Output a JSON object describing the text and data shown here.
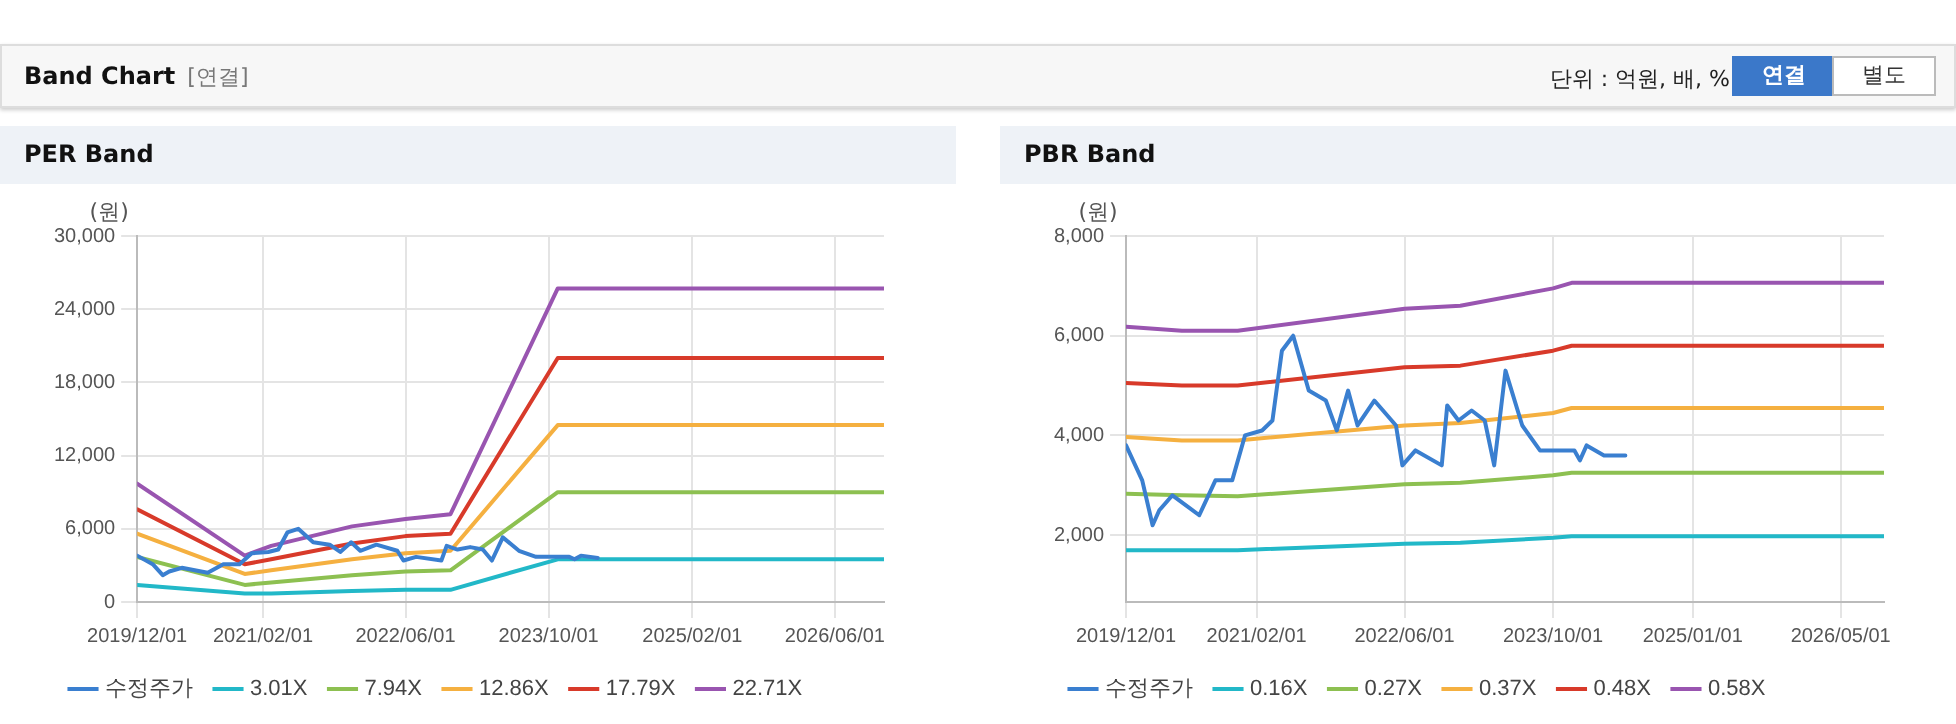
{
  "chart_data": [
    {
      "type": "line",
      "title": "PER Band",
      "ylabel": "(원)",
      "annotations": [
        "Band Chart",
        "[연결]",
        "단위 : 억원, 배, %",
        "연결",
        "별도"
      ],
      "xlim": [
        "2019-12-01",
        "2026-11-15"
      ],
      "xticks": [
        {
          "value": "2019-12-01",
          "label": "2019/12/01"
        },
        {
          "value": "2021-02-01",
          "label": "2021/02/01"
        },
        {
          "value": "2022-06-01",
          "label": "2022/06/01"
        },
        {
          "value": "2023-10-01",
          "label": "2023/10/01"
        },
        {
          "value": "2025-02-01",
          "label": "2025/02/01"
        },
        {
          "value": "2026-06-01",
          "label": "2026/06/01"
        }
      ],
      "ylim": [
        0,
        30000
      ],
      "yticks": [
        {
          "value": 0,
          "label": "0"
        },
        {
          "value": 6000,
          "label": "6,000"
        },
        {
          "value": 12000,
          "label": "12,000"
        },
        {
          "value": 18000,
          "label": "18,000"
        },
        {
          "value": 24000,
          "label": "24,000"
        },
        {
          "value": 30000,
          "label": "30,000"
        }
      ],
      "grid": true,
      "legend": "bottom",
      "marker": "none",
      "line_style": "solid",
      "series": [
        {
          "name": "수정주가",
          "color": "#3a7fd0",
          "x": [
            "2019-12-01",
            "2020-01-23",
            "2020-02-26",
            "2020-03-19",
            "2020-05-01",
            "2020-07-28",
            "2020-09-19",
            "2020-11-13",
            "2020-12-25",
            "2021-02-19",
            "2021-03-25",
            "2021-04-25",
            "2021-06-01",
            "2021-07-22",
            "2021-09-16",
            "2021-10-22",
            "2021-11-28",
            "2021-12-29",
            "2022-02-22",
            "2022-05-04",
            "2022-05-25",
            "2022-07-07",
            "2022-10-01",
            "2022-10-19",
            "2022-11-25",
            "2023-01-07",
            "2023-02-19",
            "2023-03-22",
            "2023-04-28",
            "2023-06-22",
            "2023-08-19",
            "2023-12-10",
            "2023-12-28",
            "2024-01-19",
            "2024-03-16"
          ],
          "values": [
            3800,
            3100,
            2200,
            2500,
            2800,
            2400,
            3100,
            3100,
            4000,
            4100,
            4300,
            5700,
            6000,
            4900,
            4700,
            4100,
            4900,
            4200,
            4700,
            4200,
            3400,
            3700,
            3400,
            4600,
            4300,
            4500,
            4300,
            3400,
            5300,
            4200,
            3700,
            3700,
            3500,
            3800,
            3600
          ]
        },
        {
          "name": "3.01X",
          "color": "#22b8c8",
          "x": [
            "2019-12-01",
            "2020-12-01",
            "2021-03-01",
            "2021-12-01",
            "2022-06-01",
            "2022-11-01",
            "2023-11-01",
            "2026-11-15"
          ],
          "values": [
            1400,
            700,
            700,
            900,
            1000,
            1000,
            3500,
            3500
          ]
        },
        {
          "name": "7.94X",
          "color": "#8dc051",
          "x": [
            "2019-12-01",
            "2020-12-01",
            "2021-03-01",
            "2021-12-01",
            "2022-06-01",
            "2022-11-01",
            "2023-11-01",
            "2026-11-15"
          ],
          "values": [
            3700,
            1400,
            1600,
            2200,
            2500,
            2600,
            9000,
            9000
          ]
        },
        {
          "name": "12.86X",
          "color": "#f5b040",
          "x": [
            "2019-12-01",
            "2020-12-01",
            "2021-03-01",
            "2021-12-01",
            "2022-06-01",
            "2022-11-01",
            "2023-11-01",
            "2026-11-15"
          ],
          "values": [
            5600,
            2300,
            2600,
            3500,
            4000,
            4200,
            14500,
            14500
          ]
        },
        {
          "name": "17.79X",
          "color": "#d83a2a",
          "x": [
            "2019-12-01",
            "2020-12-01",
            "2021-03-01",
            "2021-12-01",
            "2022-06-01",
            "2022-11-01",
            "2023-11-01",
            "2026-11-15"
          ],
          "values": [
            7600,
            3100,
            3500,
            4800,
            5400,
            5600,
            20000,
            20000
          ]
        },
        {
          "name": "22.71X",
          "color": "#9955b0",
          "x": [
            "2019-12-01",
            "2020-12-01",
            "2021-03-01",
            "2021-12-01",
            "2022-06-01",
            "2022-11-01",
            "2023-11-01",
            "2026-11-15"
          ],
          "values": [
            9700,
            3800,
            4600,
            6200,
            6800,
            7200,
            25700,
            25700
          ]
        }
      ]
    },
    {
      "type": "line",
      "title": "PBR Band",
      "ylabel": "(원)",
      "xlim": [
        "2019-12-01",
        "2026-09-20"
      ],
      "xticks": [
        {
          "value": "2019-12-01",
          "label": "2019/12/01"
        },
        {
          "value": "2021-02-01",
          "label": "2021/02/01"
        },
        {
          "value": "2022-06-01",
          "label": "2022/06/01"
        },
        {
          "value": "2023-10-01",
          "label": "2023/10/01"
        },
        {
          "value": "2025-01-01",
          "label": "2025/01/01"
        },
        {
          "value": "2026-05-01",
          "label": "2026/05/01"
        }
      ],
      "ylim": [
        660,
        8000
      ],
      "yticks": [
        {
          "value": 2000,
          "label": "2,000"
        },
        {
          "value": 4000,
          "label": "4,000"
        },
        {
          "value": 6000,
          "label": "6,000"
        },
        {
          "value": 8000,
          "label": "8,000"
        }
      ],
      "grid": true,
      "legend": "bottom",
      "marker": "none",
      "line_style": "solid",
      "series": [
        {
          "name": "수정주가",
          "color": "#3a7fd0",
          "x": [
            "2019-12-01",
            "2020-01-23",
            "2020-02-26",
            "2020-03-19",
            "2020-05-01",
            "2020-07-28",
            "2020-09-19",
            "2020-11-13",
            "2020-12-25",
            "2021-02-19",
            "2021-03-25",
            "2021-04-25",
            "2021-06-01",
            "2021-07-22",
            "2021-09-16",
            "2021-10-22",
            "2021-11-28",
            "2021-12-29",
            "2022-02-22",
            "2022-05-04",
            "2022-05-25",
            "2022-07-07",
            "2022-10-01",
            "2022-10-19",
            "2022-11-25",
            "2023-01-07",
            "2023-02-19",
            "2023-03-22",
            "2023-04-28",
            "2023-06-22",
            "2023-08-19",
            "2023-12-10",
            "2023-12-28",
            "2024-01-19",
            "2024-03-16",
            "2024-05-25"
          ],
          "values": [
            3800,
            3100,
            2200,
            2500,
            2800,
            2400,
            3100,
            3100,
            4000,
            4100,
            4300,
            5700,
            6000,
            4900,
            4700,
            4100,
            4900,
            4200,
            4700,
            4200,
            3400,
            3700,
            3400,
            4600,
            4300,
            4500,
            4300,
            3400,
            5300,
            4200,
            3700,
            3700,
            3500,
            3800,
            3600,
            3600
          ]
        },
        {
          "name": "0.16X",
          "color": "#22b8c8",
          "x": [
            "2019-12-01",
            "2020-06-01",
            "2020-12-01",
            "2022-06-01",
            "2022-12-01",
            "2023-10-01",
            "2023-12-01",
            "2026-09-20"
          ],
          "values": [
            1700,
            1700,
            1700,
            1830,
            1850,
            1950,
            1980,
            1980
          ]
        },
        {
          "name": "0.27X",
          "color": "#8dc051",
          "x": [
            "2019-12-01",
            "2020-06-01",
            "2020-12-01",
            "2022-06-01",
            "2022-12-01",
            "2023-10-01",
            "2023-12-01",
            "2026-09-20"
          ],
          "values": [
            2830,
            2800,
            2780,
            3020,
            3050,
            3200,
            3250,
            3250
          ]
        },
        {
          "name": "0.37X",
          "color": "#f5b040",
          "x": [
            "2019-12-01",
            "2020-06-01",
            "2020-12-01",
            "2022-06-01",
            "2022-12-01",
            "2023-10-01",
            "2023-12-01",
            "2026-09-20"
          ],
          "values": [
            3970,
            3900,
            3900,
            4200,
            4250,
            4450,
            4550,
            4550
          ]
        },
        {
          "name": "0.48X",
          "color": "#d83a2a",
          "x": [
            "2019-12-01",
            "2020-06-01",
            "2020-12-01",
            "2022-06-01",
            "2022-12-01",
            "2023-10-01",
            "2023-12-01",
            "2026-09-20"
          ],
          "values": [
            5050,
            5000,
            5000,
            5370,
            5400,
            5700,
            5800,
            5800
          ]
        },
        {
          "name": "0.58X",
          "color": "#9955b0",
          "x": [
            "2019-12-01",
            "2020-06-01",
            "2020-12-01",
            "2022-06-01",
            "2022-12-01",
            "2023-10-01",
            "2023-12-01",
            "2026-09-20"
          ],
          "values": [
            6180,
            6100,
            6100,
            6540,
            6600,
            6950,
            7060,
            7060
          ]
        }
      ]
    }
  ]
}
